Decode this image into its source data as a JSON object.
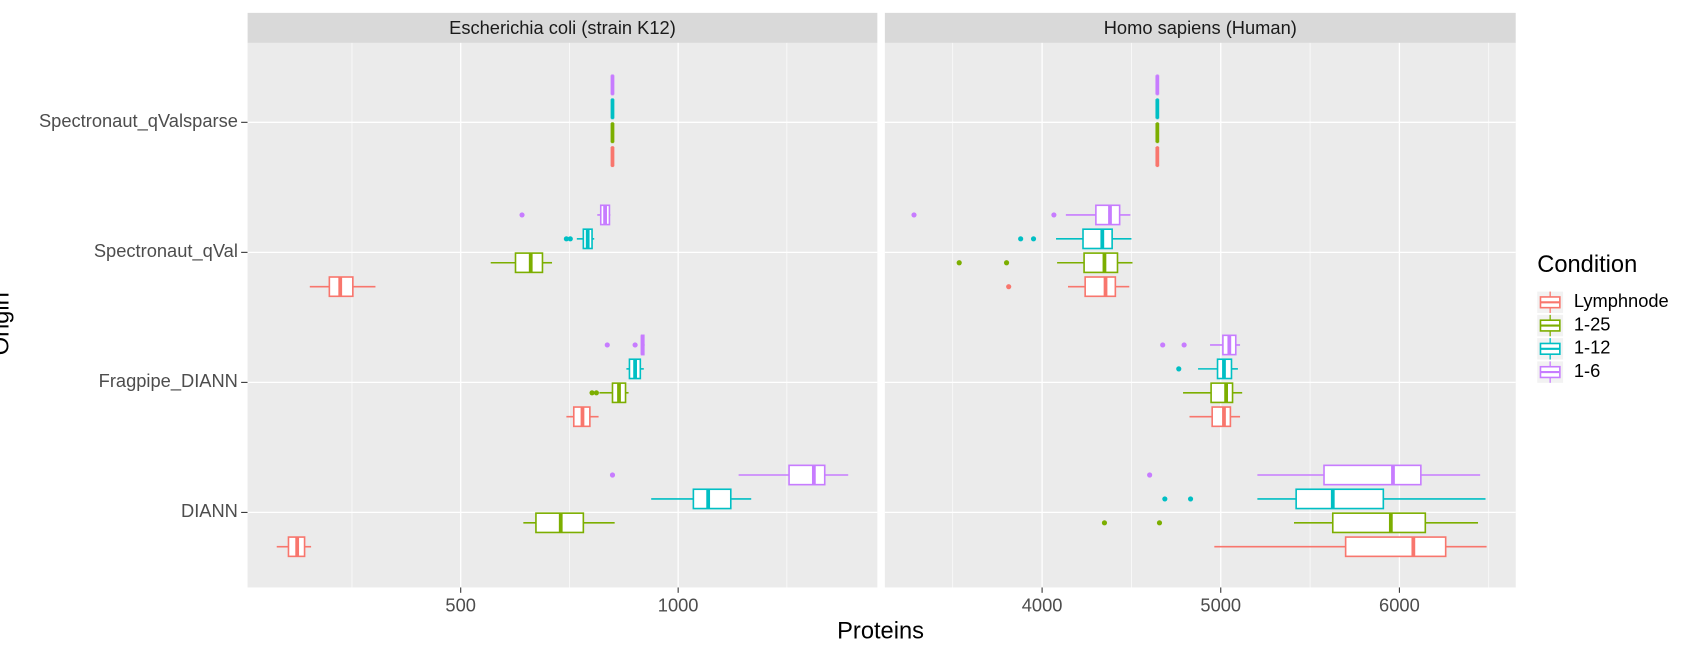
{
  "chart_data": {
    "type": "boxplot",
    "x_label": "Proteins",
    "y_label": "Origin",
    "legend_title": "Condition",
    "legend_position": "right",
    "categories": [
      "DIANN",
      "Fragpipe_DIANN",
      "Spectronaut_qVal",
      "Spectronaut_qValsparse"
    ],
    "series": [
      {
        "name": "Lymphnode",
        "color": "#F8766D"
      },
      {
        "name": "1-25",
        "color": "#7CAE00"
      },
      {
        "name": "1-12",
        "color": "#00BFC4"
      },
      {
        "name": "1-6",
        "color": "#C77CFF"
      }
    ],
    "panels": [
      {
        "title": "Escherichia coli (strain K12)",
        "xlim": [
          10,
          1458
        ],
        "xticks": [
          500,
          1000
        ],
        "minor_xticks": [
          250,
          750,
          1250
        ],
        "boxes": [
          [
            {
              "min": 77,
              "q1": 104,
              "median": 124,
              "q3": 141,
              "max": 156,
              "outliers": []
            },
            {
              "min": 644,
              "q1": 673,
              "median": 730,
              "q3": 782,
              "max": 854,
              "outliers": []
            },
            {
              "min": 938,
              "q1": 1035,
              "median": 1069,
              "q3": 1121,
              "max": 1168,
              "outliers": []
            },
            {
              "min": 1139,
              "q1": 1255,
              "median": 1312,
              "q3": 1337,
              "max": 1391,
              "outliers": [
                849
              ]
            }
          ],
          [
            {
              "min": 743,
              "q1": 760,
              "median": 780,
              "q3": 797,
              "max": 817,
              "outliers": []
            },
            {
              "min": 819,
              "q1": 849,
              "median": 864,
              "q3": 879,
              "max": 886,
              "outliers": [
                802,
                812
              ]
            },
            {
              "min": 881,
              "q1": 888,
              "median": 901,
              "q3": 913,
              "max": 921,
              "outliers": []
            },
            {
              "min": 916,
              "q1": 916,
              "median": 918,
              "q3": 921,
              "max": 923,
              "outliers": [
                837,
                901
              ]
            }
          ],
          [
            {
              "min": 153,
              "q1": 198,
              "median": 223,
              "q3": 252,
              "max": 304,
              "outliers": []
            },
            {
              "min": 569,
              "q1": 626,
              "median": 661,
              "q3": 688,
              "max": 710,
              "outliers": []
            },
            {
              "min": 767,
              "q1": 782,
              "median": 792,
              "q3": 802,
              "max": 807,
              "outliers": [
                743,
                752
              ]
            },
            {
              "min": 814,
              "q1": 822,
              "median": 832,
              "q3": 842,
              "max": 844,
              "outliers": [
                641
              ]
            }
          ],
          [
            {
              "min": 848,
              "q1": 848,
              "median": 849,
              "q3": 850,
              "max": 850,
              "outliers": []
            },
            {
              "min": 848,
              "q1": 848,
              "median": 849,
              "q3": 850,
              "max": 850,
              "outliers": []
            },
            {
              "min": 848,
              "q1": 848,
              "median": 849,
              "q3": 850,
              "max": 850,
              "outliers": []
            },
            {
              "min": 848,
              "q1": 848,
              "median": 849,
              "q3": 850,
              "max": 850,
              "outliers": []
            }
          ]
        ]
      },
      {
        "title": "Homo sapiens (Human)",
        "xlim": [
          3120,
          6651
        ],
        "xticks": [
          4000,
          5000,
          6000
        ],
        "minor_xticks": [
          3500,
          4500,
          5500,
          6500
        ],
        "boxes": [
          [
            {
              "min": 4964,
              "q1": 5699,
              "median": 6078,
              "q3": 6259,
              "max": 6488,
              "outliers": []
            },
            {
              "min": 5410,
              "q1": 5627,
              "median": 5952,
              "q3": 6145,
              "max": 6440,
              "outliers": [
                4349,
                4657
              ]
            },
            {
              "min": 5205,
              "q1": 5422,
              "median": 5627,
              "q3": 5910,
              "max": 6482,
              "outliers": [
                4687,
                4831
              ]
            },
            {
              "min": 5205,
              "q1": 5578,
              "median": 5964,
              "q3": 6120,
              "max": 6452,
              "outliers": [
                4602
              ]
            }
          ],
          [
            {
              "min": 4825,
              "q1": 4952,
              "median": 5018,
              "q3": 5054,
              "max": 5108,
              "outliers": []
            },
            {
              "min": 4789,
              "q1": 4946,
              "median": 5030,
              "q3": 5066,
              "max": 5120,
              "outliers": []
            },
            {
              "min": 4873,
              "q1": 4982,
              "median": 5018,
              "q3": 5060,
              "max": 5096,
              "outliers": [
                4765
              ]
            },
            {
              "min": 4940,
              "q1": 5012,
              "median": 5048,
              "q3": 5084,
              "max": 5108,
              "outliers": [
                4675,
                4795
              ]
            }
          ],
          [
            {
              "min": 4145,
              "q1": 4241,
              "median": 4355,
              "q3": 4410,
              "max": 4488,
              "outliers": [
                3813
              ]
            },
            {
              "min": 4084,
              "q1": 4235,
              "median": 4349,
              "q3": 4422,
              "max": 4506,
              "outliers": [
                3536,
                3801
              ]
            },
            {
              "min": 4078,
              "q1": 4229,
              "median": 4337,
              "q3": 4392,
              "max": 4500,
              "outliers": [
                3880,
                3952
              ]
            },
            {
              "min": 4133,
              "q1": 4301,
              "median": 4380,
              "q3": 4434,
              "max": 4494,
              "outliers": [
                3283,
                4066
              ]
            }
          ],
          [
            {
              "min": 4644,
              "q1": 4644,
              "median": 4645,
              "q3": 4646,
              "max": 4646,
              "outliers": []
            },
            {
              "min": 4644,
              "q1": 4644,
              "median": 4645,
              "q3": 4646,
              "max": 4646,
              "outliers": []
            },
            {
              "min": 4644,
              "q1": 4644,
              "median": 4645,
              "q3": 4646,
              "max": 4646,
              "outliers": []
            },
            {
              "min": 4644,
              "q1": 4644,
              "median": 4645,
              "q3": 4646,
              "max": 4646,
              "outliers": []
            }
          ]
        ]
      }
    ]
  }
}
